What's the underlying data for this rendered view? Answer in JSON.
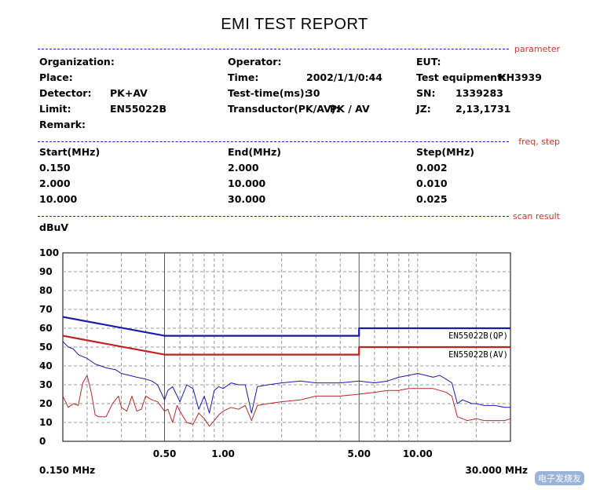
{
  "report": {
    "title": "EMI TEST REPORT"
  },
  "sections": {
    "parameter": "parameter",
    "freq_step": "freq, step",
    "scan_result": "scan result"
  },
  "params": {
    "organization_label": "Organization:",
    "place_label": "Place:",
    "detector_label": "Detector:",
    "detector_value": "PK+AV",
    "limit_label": "Limit:",
    "limit_value": "EN55022B",
    "remark_label": "Remark:",
    "operator_label": "Operator:",
    "time_label": "Time:",
    "time_value": "2002/1/1/0:44",
    "testtime_label": "Test-time(ms):",
    "testtime_value": "30",
    "transductor_label": "Transductor(PK/AV):",
    "transductor_value": "PK  /  AV",
    "eut_label": "EUT:",
    "equipment_label": "Test equipment:",
    "equipment_value": "KH3939",
    "sn_label": "SN:",
    "sn_value": "1339283",
    "jz_label": "JZ:",
    "jz_value": "2,13,1731"
  },
  "freq_table": {
    "headers": [
      "Start(MHz)",
      "End(MHz)",
      "Step(MHz)"
    ],
    "rows": [
      [
        "0.150",
        "2.000",
        "0.002"
      ],
      [
        "2.000",
        "10.000",
        "0.010"
      ],
      [
        "10.000",
        "30.000",
        "0.025"
      ]
    ]
  },
  "chart_data": {
    "type": "line",
    "ylabel": "dBuV",
    "x_scale": "log",
    "xlim": [
      0.15,
      30
    ],
    "ylim": [
      0,
      100
    ],
    "y_ticks": [
      "0",
      "10",
      "20",
      "30",
      "40",
      "50",
      "60",
      "70",
      "80",
      "90",
      "100"
    ],
    "x_tick_labels": [
      {
        "x": 0.5,
        "label": "0.50"
      },
      {
        "x": 1.0,
        "label": "1.00"
      },
      {
        "x": 5.0,
        "label": "5.00"
      },
      {
        "x": 10.0,
        "label": "10.00"
      }
    ],
    "x_start_label": "0.150 MHz",
    "x_end_label": "30.000 MHz",
    "grid": true,
    "series": [
      {
        "name": "EN55022B(QP)",
        "kind": "limit",
        "color": "#1a1aa8",
        "x": [
          0.15,
          0.5,
          5.0,
          5.0,
          30.0
        ],
        "y": [
          66,
          56,
          56,
          60,
          60
        ]
      },
      {
        "name": "EN55022B(AV)",
        "kind": "limit",
        "color": "#c0201f",
        "x": [
          0.15,
          0.5,
          5.0,
          5.0,
          30.0
        ],
        "y": [
          56,
          46,
          46,
          50,
          50
        ]
      },
      {
        "kind": "measurement",
        "color": "#1a1aa8",
        "x": [
          0.15,
          0.16,
          0.17,
          0.18,
          0.2,
          0.22,
          0.25,
          0.28,
          0.3,
          0.33,
          0.36,
          0.4,
          0.43,
          0.46,
          0.5,
          0.52,
          0.55,
          0.6,
          0.65,
          0.7,
          0.75,
          0.8,
          0.85,
          0.9,
          0.95,
          1.0,
          1.1,
          1.2,
          1.3,
          1.4,
          1.5,
          1.7,
          2.0,
          2.5,
          3.0,
          4.0,
          5.0,
          6.0,
          7.0,
          8.0,
          9.0,
          10.0,
          11.0,
          12.0,
          13.0,
          14.0,
          15.0,
          16.0,
          17.0,
          18.0,
          19.0,
          20.0,
          22.0,
          25.0,
          28.0,
          30.0
        ],
        "y": [
          53,
          50,
          49,
          46,
          44,
          41,
          39,
          38,
          36,
          35,
          34,
          33,
          32,
          30,
          22,
          27,
          29,
          21,
          30,
          28,
          17,
          24,
          15,
          27,
          29,
          28,
          31,
          30,
          30,
          15,
          29,
          30,
          31,
          32,
          31,
          31,
          32,
          31,
          32,
          34,
          35,
          36,
          35,
          34,
          35,
          33,
          31,
          20,
          22,
          21,
          20,
          20,
          19,
          19,
          18,
          18
        ]
      },
      {
        "kind": "measurement",
        "color": "#b12a2a",
        "x": [
          0.15,
          0.16,
          0.17,
          0.18,
          0.19,
          0.2,
          0.21,
          0.22,
          0.23,
          0.25,
          0.27,
          0.29,
          0.3,
          0.32,
          0.34,
          0.36,
          0.38,
          0.4,
          0.43,
          0.46,
          0.5,
          0.52,
          0.55,
          0.58,
          0.6,
          0.65,
          0.7,
          0.75,
          0.8,
          0.85,
          0.9,
          0.95,
          1.0,
          1.1,
          1.2,
          1.3,
          1.4,
          1.5,
          1.7,
          2.0,
          2.5,
          3.0,
          4.0,
          5.0,
          6.0,
          7.0,
          8.0,
          9.0,
          10.0,
          11.0,
          12.0,
          13.0,
          14.0,
          15.0,
          16.0,
          17.0,
          18.0,
          20.0,
          22.0,
          25.0,
          28.0,
          30.0
        ],
        "y": [
          24,
          18,
          20,
          19,
          31,
          35,
          26,
          14,
          13,
          13,
          20,
          24,
          18,
          16,
          24,
          16,
          17,
          24,
          22,
          21,
          16,
          17,
          10,
          19,
          16,
          10,
          9,
          15,
          12,
          8,
          11,
          14,
          16,
          18,
          17,
          19,
          11,
          19,
          20,
          21,
          22,
          24,
          24,
          25,
          26,
          27,
          27,
          28,
          28,
          28,
          28,
          27,
          26,
          24,
          13,
          12,
          11,
          12,
          11,
          11,
          11,
          12
        ]
      }
    ]
  },
  "watermark": "电子发烧友"
}
